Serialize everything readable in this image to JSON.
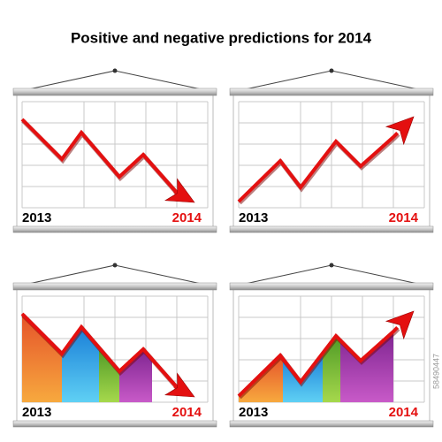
{
  "header": {
    "title": "Positive and negative predictions for 2014"
  },
  "panels": [
    {
      "start_label": "2013",
      "end_label": "2014"
    },
    {
      "start_label": "2013",
      "end_label": "2014"
    },
    {
      "start_label": "2013",
      "end_label": "2014"
    },
    {
      "start_label": "2013",
      "end_label": "2014"
    }
  ],
  "watermark": "58490447"
}
